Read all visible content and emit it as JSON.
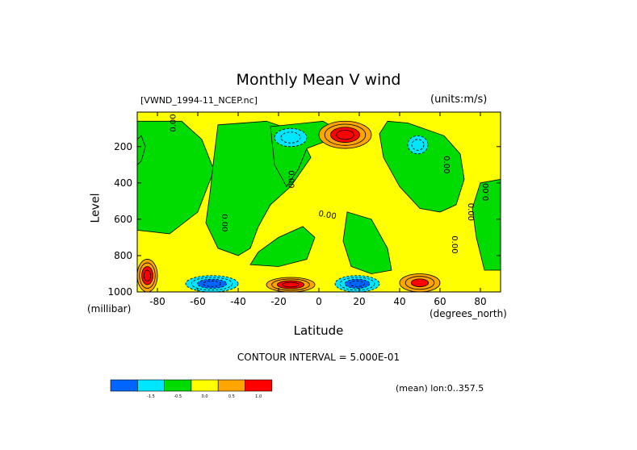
{
  "chart_data": {
    "type": "heatmap",
    "title": "Monthly Mean V wind",
    "dataset": "[VWND_1994-11_NCEP.nc]",
    "units": "(units:m/s)",
    "xlabel": "Latitude",
    "x_unit": "(degrees_north)",
    "ylabel": "Level",
    "y_unit": "(millibar)",
    "xlim": [
      -90,
      90
    ],
    "ylim": [
      1000,
      10
    ],
    "x_ticks": [
      -80,
      -60,
      -40,
      -20,
      0,
      20,
      40,
      60,
      80
    ],
    "y_ticks": [
      200,
      400,
      600,
      800,
      1000
    ],
    "contour_interval_label": "CONTOUR INTERVAL = 5.000E-01",
    "contour_labels": [
      "0.00"
    ],
    "mean_label": "(mean) lon:0..357.5",
    "legend": {
      "colors": [
        "#0064ff",
        "#00e6ff",
        "#00dc00",
        "#ffff00",
        "#ffa500",
        "#ff0000"
      ],
      "labels": [
        "-1.5",
        "-0.5",
        "0.0",
        "0.5",
        "1.0"
      ]
    },
    "regions": [
      {
        "name": "far-south-max",
        "lat": [
          -90,
          -80
        ],
        "level": [
          820,
          1000
        ],
        "value": 2.0
      },
      {
        "name": "south-low-min",
        "lat": [
          -66,
          -40
        ],
        "level": [
          910,
          1000
        ],
        "value": -2.0
      },
      {
        "name": "tropic-south-max",
        "lat": [
          -26,
          -2
        ],
        "level": [
          920,
          1000
        ],
        "value": 2.0
      },
      {
        "name": "tropic-north-min",
        "lat": [
          8,
          30
        ],
        "level": [
          910,
          1000
        ],
        "value": -2.0
      },
      {
        "name": "midlat-north-max",
        "lat": [
          40,
          60
        ],
        "level": [
          900,
          1000
        ],
        "value": 1.5
      },
      {
        "name": "upper-south-min",
        "lat": [
          -22,
          -6
        ],
        "level": [
          100,
          200
        ],
        "value": -1.0
      },
      {
        "name": "upper-north-max",
        "lat": [
          0,
          26
        ],
        "level": [
          60,
          210
        ],
        "value": 2.0
      },
      {
        "name": "upper-midlat-min",
        "lat": [
          44,
          54
        ],
        "level": [
          140,
          240
        ],
        "value": -1.0
      }
    ]
  }
}
